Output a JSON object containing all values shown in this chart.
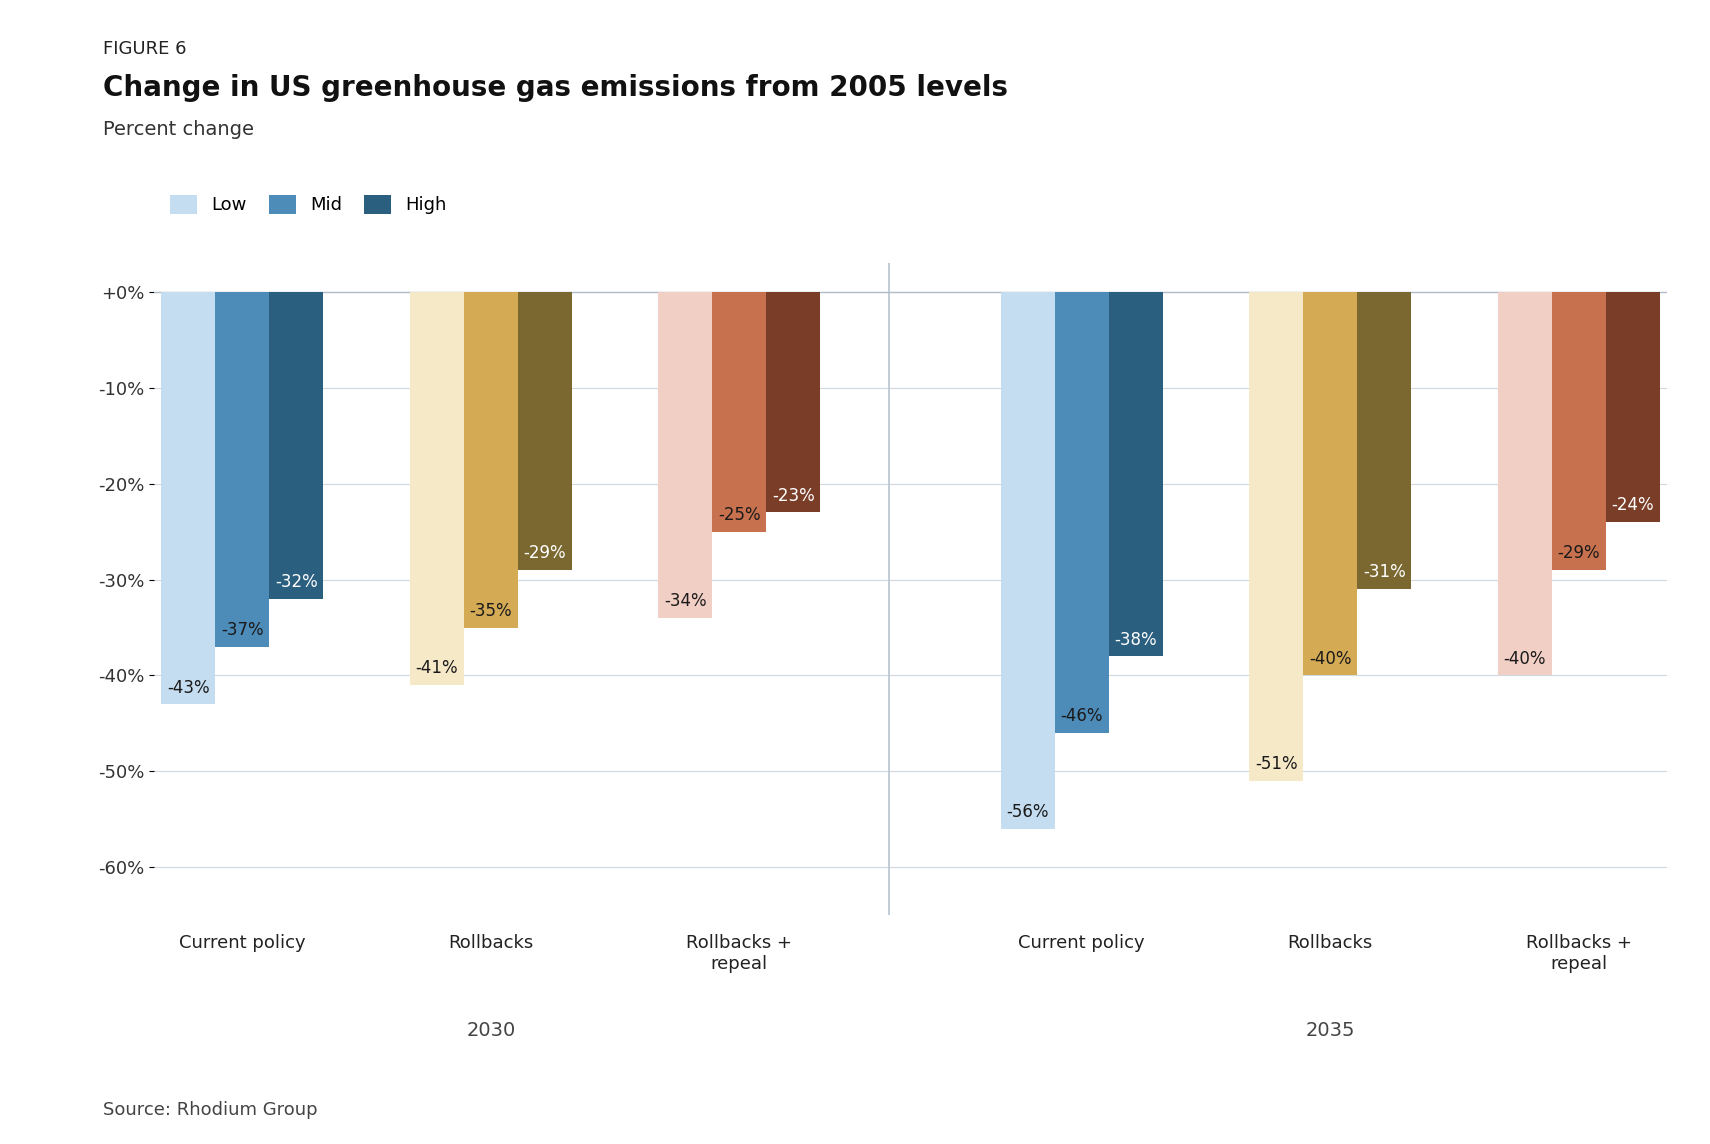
{
  "figure_label": "FIGURE 6",
  "title": "Change in US greenhouse gas emissions from 2005 levels",
  "subtitle": "Percent change",
  "source": "Source: Rhodium Group",
  "legend_labels": [
    "Low",
    "Mid",
    "High"
  ],
  "groups": [
    {
      "year": "2030",
      "scenarios": [
        {
          "name": "Current policy",
          "values": [
            -43,
            -37,
            -32
          ],
          "colors": [
            "#c5ddf0",
            "#4d8bb8",
            "#2b5f80"
          ]
        },
        {
          "name": "Rollbacks",
          "values": [
            -41,
            -35,
            -29
          ],
          "colors": [
            "#f5e9c8",
            "#d4aa55",
            "#7a6830"
          ]
        },
        {
          "name": "Rollbacks +\nrepeal",
          "values": [
            -34,
            -25,
            -23
          ],
          "colors": [
            "#f2cfc5",
            "#c8714e",
            "#7a3e28"
          ]
        }
      ]
    },
    {
      "year": "2035",
      "scenarios": [
        {
          "name": "Current policy",
          "values": [
            -56,
            -46,
            -38
          ],
          "colors": [
            "#c5ddf0",
            "#4d8bb8",
            "#2b5f80"
          ]
        },
        {
          "name": "Rollbacks",
          "values": [
            -51,
            -40,
            -31
          ],
          "colors": [
            "#f5e9c8",
            "#d4aa55",
            "#7a6830"
          ]
        },
        {
          "name": "Rollbacks +\nrepeal",
          "values": [
            -40,
            -29,
            -24
          ],
          "colors": [
            "#f2cfc5",
            "#c8714e",
            "#7a3e28"
          ]
        }
      ]
    }
  ],
  "ylim": [
    -65,
    3
  ],
  "yticks": [
    0,
    -10,
    -20,
    -30,
    -40,
    -50,
    -60
  ],
  "ytick_labels": [
    "+0%",
    "-10%",
    "-20%",
    "-30%",
    "-40%",
    "-50%",
    "-60%"
  ],
  "background_color": "#ffffff",
  "label_fontsize": 12,
  "title_fontsize": 20,
  "subtitle_fontsize": 14,
  "axis_fontsize": 13
}
